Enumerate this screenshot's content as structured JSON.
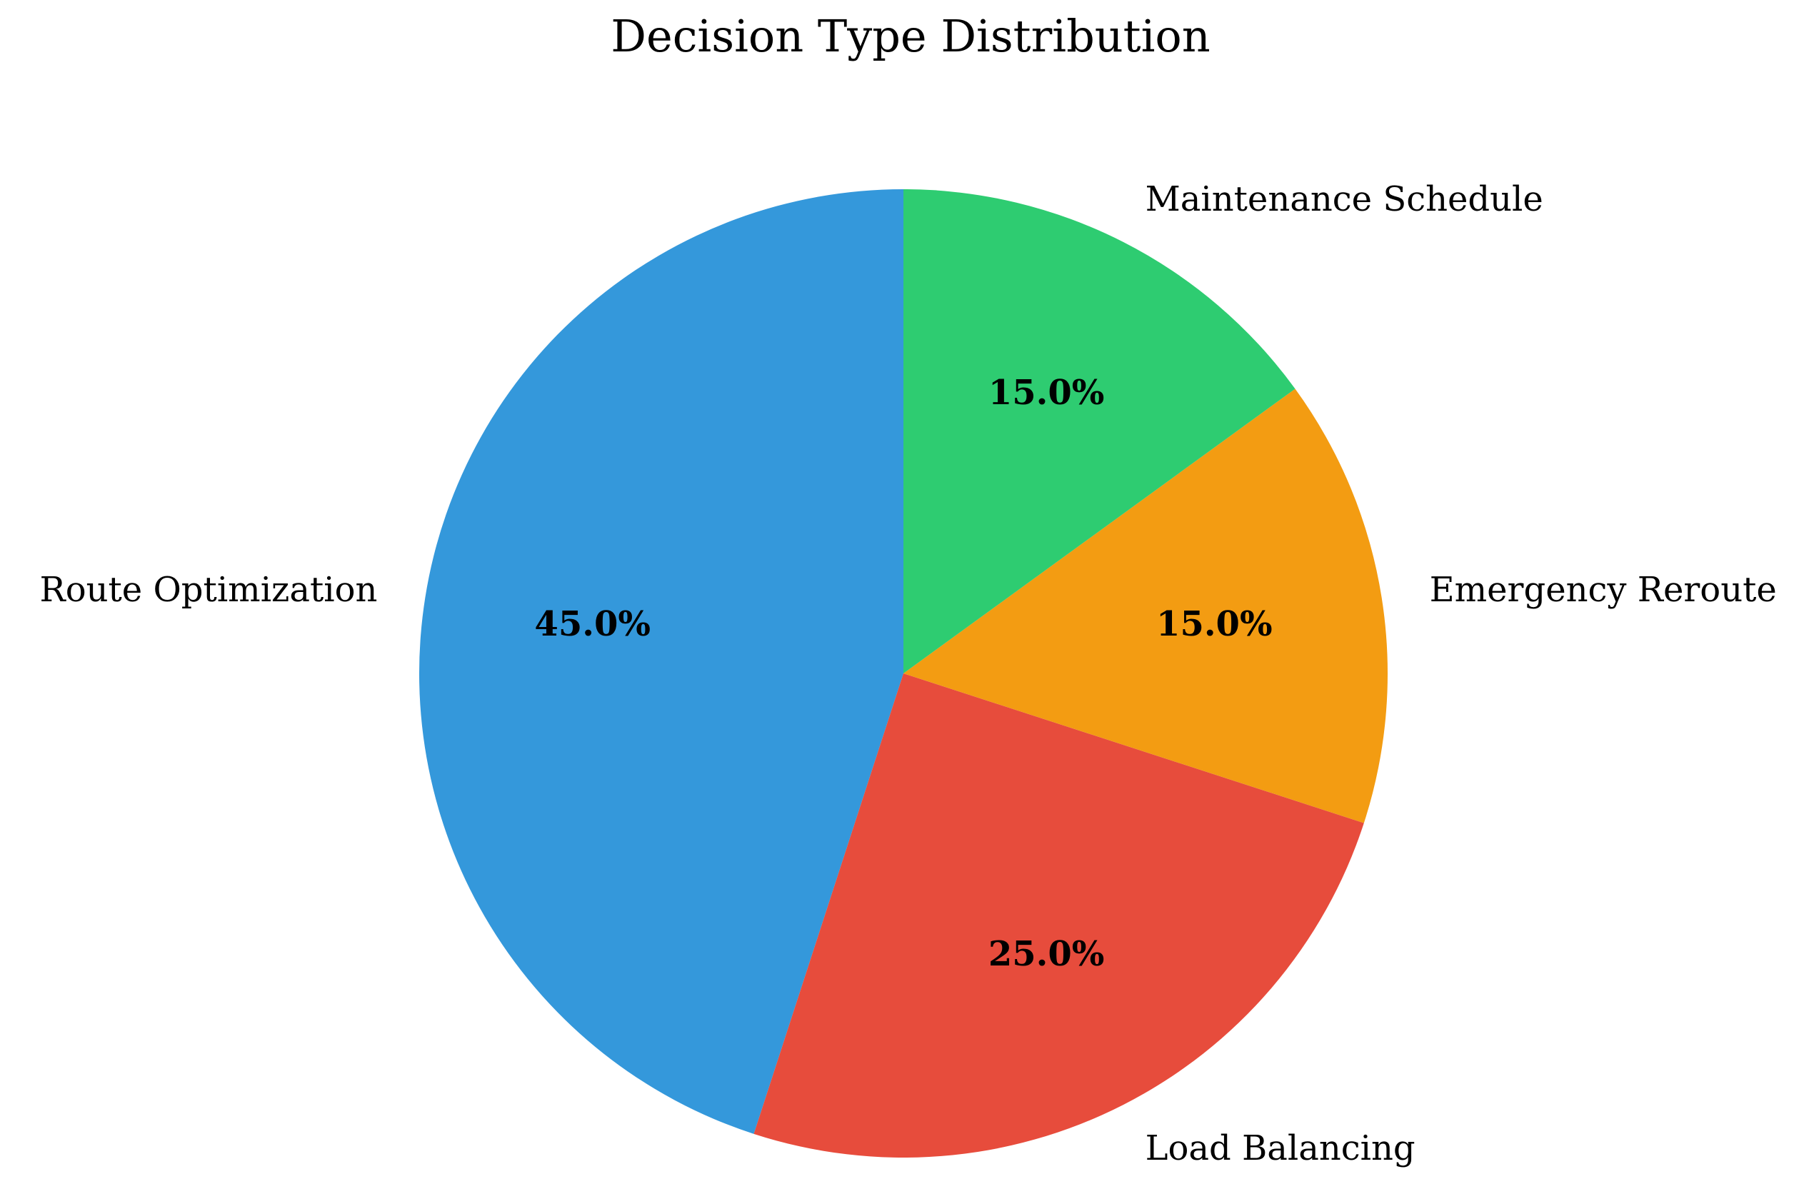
{
  "figure": {
    "background": "#ffffff",
    "text_color": "#000000"
  },
  "chart_data": {
    "type": "pie",
    "title": "Decision Type Distribution",
    "slices": [
      {
        "label": "Route Optimization",
        "value": 45.0,
        "pct_label": "45.0%",
        "color": "#3498db"
      },
      {
        "label": "Load Balancing",
        "value": 25.0,
        "pct_label": "25.0%",
        "color": "#e74c3c"
      },
      {
        "label": "Emergency Reroute",
        "value": 15.0,
        "pct_label": "15.0%",
        "color": "#f39c12"
      },
      {
        "label": "Maintenance Schedule",
        "value": 15.0,
        "pct_label": "15.0%",
        "color": "#2ecc71"
      }
    ],
    "start_angle": 90,
    "counterclockwise": true,
    "pct_distance": 0.65,
    "label_distance": 1.1,
    "legend": "none",
    "grid": false
  }
}
